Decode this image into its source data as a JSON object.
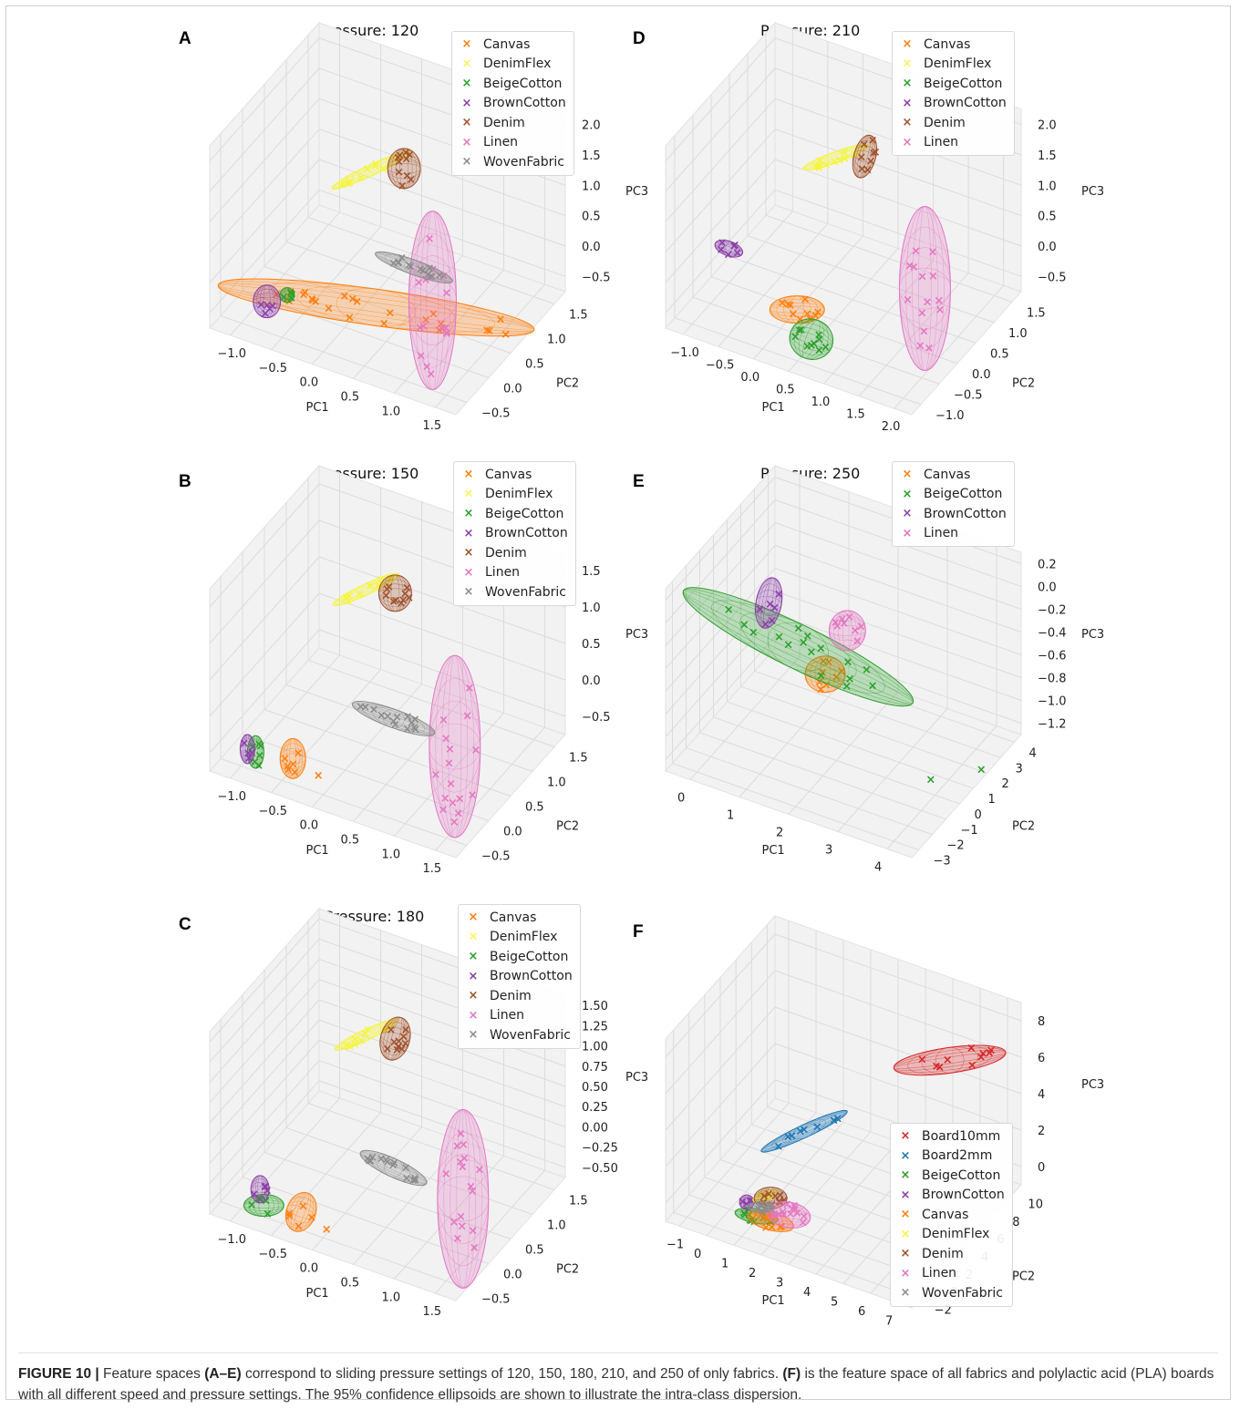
{
  "figure_caption": {
    "label": "FIGURE 10 |",
    "p1": " Feature spaces ",
    "b1": "(A–E)",
    "p2": " correspond to sliding pressure settings of 120, 150, 180, 210, and 250 of only fabrics. ",
    "b2": "(F)",
    "p3": " is the feature space of all fabrics and polylactic acid (PLA) boards with all different speed and pressure settings. The 95% confidence ellipsoids are shown to illustrate the intra-class dispersion."
  },
  "colors": {
    "Canvas": "#ff7f0e",
    "DenimFlex": "#f5f542",
    "BeigeCotton": "#2ca02c",
    "BrownCotton": "#8b3fa8",
    "Denim": "#a0522d",
    "Linen": "#e377c2",
    "WovenFabric": "#8c8c8c",
    "Board10mm": "#d62728",
    "Board2mm": "#1f77b4"
  },
  "chart_data": [
    {
      "panel": "A",
      "type": "scatter",
      "title": "Pressure: 120",
      "xlabel": "PC1",
      "ylabel": "PC2",
      "zlabel": "PC3",
      "xticks": [
        "−1.0",
        "−0.5",
        "0.0",
        "0.5",
        "1.0",
        "1.5"
      ],
      "yticks": [
        "−0.5",
        "0.0",
        "0.5",
        "1.0",
        "1.5"
      ],
      "zticks": [
        "−0.5",
        "0.0",
        "0.5",
        "1.0",
        "1.5",
        "2.0"
      ],
      "legend": [
        {
          "label": "Canvas",
          "marker": "×"
        },
        {
          "label": "DenimFlex",
          "marker": "✕"
        },
        {
          "label": "BeigeCotton",
          "marker": "×"
        },
        {
          "label": "BrownCotton",
          "marker": "×"
        },
        {
          "label": "Denim",
          "marker": "×"
        },
        {
          "label": "Linen",
          "marker": "×"
        },
        {
          "label": "WovenFabric",
          "marker": "×"
        }
      ],
      "series": [
        {
          "name": "Canvas",
          "center": [
            0.3,
            0.2,
            -0.3
          ],
          "radii": [
            175,
            20
          ],
          "tilt": 8,
          "n": 24,
          "outliers": [
            [
              1.7,
              0.6,
              -0.4
            ]
          ]
        },
        {
          "name": "DenimFlex",
          "center": [
            -0.2,
            1.0,
            0.9
          ],
          "radii": [
            48,
            6
          ],
          "tilt": -25,
          "n": 10
        },
        {
          "name": "BeigeCotton",
          "center": [
            -0.6,
            -0.2,
            -0.2
          ],
          "radii": [
            8,
            8
          ],
          "tilt": 0,
          "n": 4
        },
        {
          "name": "BrownCotton",
          "center": [
            -0.8,
            -0.3,
            -0.3
          ],
          "radii": [
            15,
            18
          ],
          "tilt": 0,
          "n": 5
        },
        {
          "name": "Denim",
          "center": [
            0.1,
            1.2,
            0.9
          ],
          "radii": [
            18,
            22
          ],
          "tilt": 0,
          "n": 10
        },
        {
          "name": "Linen",
          "center": [
            0.9,
            0.4,
            -0.1
          ],
          "radii": [
            26,
            98
          ],
          "tilt": 0,
          "n": 16
        },
        {
          "name": "WovenFabric",
          "center": [
            0.5,
            0.7,
            0.0
          ],
          "radii": [
            45,
            8
          ],
          "tilt": 20,
          "n": 12
        }
      ]
    },
    {
      "panel": "B",
      "type": "scatter",
      "title": "Pressure: 150",
      "xlabel": "PC1",
      "ylabel": "PC2",
      "zlabel": "PC3",
      "xticks": [
        "−1.0",
        "−0.5",
        "0.0",
        "0.5",
        "1.0",
        "1.5"
      ],
      "yticks": [
        "−0.5",
        "0.0",
        "0.5",
        "1.0",
        "1.5"
      ],
      "zticks": [
        "−0.5",
        "0.0",
        "0.5",
        "1.0",
        "1.5"
      ],
      "legend": [
        {
          "label": "Canvas",
          "marker": "×"
        },
        {
          "label": "DenimFlex",
          "marker": "✕"
        },
        {
          "label": "BeigeCotton",
          "marker": "×"
        },
        {
          "label": "BrownCotton",
          "marker": "×"
        },
        {
          "label": "Denim",
          "marker": "×"
        },
        {
          "label": "Linen",
          "marker": "×"
        },
        {
          "label": "WovenFabric",
          "marker": "×"
        }
      ],
      "series": [
        {
          "name": "Canvas",
          "center": [
            -0.5,
            -0.3,
            -0.5
          ],
          "radii": [
            14,
            22
          ],
          "tilt": 0,
          "n": 6,
          "outliers": [
            [
              -0.2,
              -0.3,
              -0.6
            ]
          ]
        },
        {
          "name": "DenimFlex",
          "center": [
            -0.3,
            1.0,
            0.9
          ],
          "radii": [
            40,
            6
          ],
          "tilt": -25,
          "n": 10
        },
        {
          "name": "BeigeCotton",
          "center": [
            -0.9,
            -0.4,
            -0.5
          ],
          "radii": [
            9,
            18
          ],
          "tilt": 0,
          "n": 6
        },
        {
          "name": "BrownCotton",
          "center": [
            -1.0,
            -0.4,
            -0.5
          ],
          "radii": [
            8,
            16
          ],
          "tilt": 0,
          "n": 4
        },
        {
          "name": "Denim",
          "center": [
            0.0,
            1.1,
            0.9
          ],
          "radii": [
            18,
            20
          ],
          "tilt": 0,
          "n": 10
        },
        {
          "name": "Linen",
          "center": [
            1.1,
            0.4,
            -0.2
          ],
          "radii": [
            28,
            100
          ],
          "tilt": 0,
          "n": 16
        },
        {
          "name": "WovenFabric",
          "center": [
            0.3,
            0.5,
            -0.2
          ],
          "radii": [
            48,
            10
          ],
          "tilt": 20,
          "n": 14
        }
      ]
    },
    {
      "panel": "C",
      "type": "scatter",
      "title": "Pressure: 180",
      "xlabel": "PC1",
      "ylabel": "PC2",
      "zlabel": "PC3",
      "xticks": [
        "−1.0",
        "−0.5",
        "0.0",
        "0.5",
        "1.0",
        "1.5"
      ],
      "yticks": [
        "−0.5",
        "0.0",
        "0.5",
        "1.0",
        "1.5"
      ],
      "zticks": [
        "−0.50",
        "−0.25",
        "0.00",
        "0.25",
        "0.50",
        "0.75",
        "1.00",
        "1.25",
        "1.50"
      ],
      "legend": [
        {
          "label": "Canvas",
          "marker": "×"
        },
        {
          "label": "DenimFlex",
          "marker": "✕"
        },
        {
          "label": "BeigeCotton",
          "marker": "×"
        },
        {
          "label": "BrownCotton",
          "marker": "×"
        },
        {
          "label": "Denim",
          "marker": "×"
        },
        {
          "label": "Linen",
          "marker": "×"
        },
        {
          "label": "WovenFabric",
          "marker": "×"
        }
      ],
      "series": [
        {
          "name": "Canvas",
          "center": [
            -0.4,
            -0.3,
            -0.5
          ],
          "radii": [
            16,
            22
          ],
          "tilt": 20,
          "n": 5,
          "outliers": [
            [
              -0.1,
              -0.3,
              -0.6
            ]
          ]
        },
        {
          "name": "DenimFlex",
          "center": [
            -0.3,
            1.0,
            0.9
          ],
          "radii": [
            38,
            6
          ],
          "tilt": -25,
          "n": 10
        },
        {
          "name": "BeigeCotton",
          "center": [
            -0.8,
            -0.4,
            -0.5
          ],
          "radii": [
            22,
            12
          ],
          "tilt": 0,
          "n": 6
        },
        {
          "name": "BrownCotton",
          "center": [
            -0.9,
            -0.3,
            -0.4
          ],
          "radii": [
            10,
            15
          ],
          "tilt": 0,
          "n": 4
        },
        {
          "name": "Denim",
          "center": [
            0.0,
            1.1,
            0.9
          ],
          "radii": [
            16,
            24
          ],
          "tilt": 15,
          "n": 10
        },
        {
          "name": "Linen",
          "center": [
            1.2,
            0.4,
            -0.2
          ],
          "radii": [
            28,
            98
          ],
          "tilt": 0,
          "n": 16
        },
        {
          "name": "WovenFabric",
          "center": [
            0.3,
            0.5,
            -0.2
          ],
          "radii": [
            40,
            10
          ],
          "tilt": 25,
          "n": 14
        }
      ]
    },
    {
      "panel": "D",
      "type": "scatter",
      "title": "Pressure: 210",
      "xlabel": "PC1",
      "ylabel": "PC2",
      "zlabel": "PC3",
      "xticks": [
        "−1.0",
        "−0.5",
        "0.0",
        "0.5",
        "1.0",
        "1.5",
        "2.0"
      ],
      "yticks": [
        "−1.0",
        "−0.5",
        "0.0",
        "0.5",
        "1.0",
        "1.5"
      ],
      "zticks": [
        "−0.5",
        "0.0",
        "0.5",
        "1.0",
        "1.5",
        "2.0"
      ],
      "legend": [
        {
          "label": "Canvas",
          "marker": "×"
        },
        {
          "label": "DenimFlex",
          "marker": "✕"
        },
        {
          "label": "BeigeCotton",
          "marker": "×"
        },
        {
          "label": "BrownCotton",
          "marker": "×"
        },
        {
          "label": "Denim",
          "marker": "×"
        },
        {
          "label": "Linen",
          "marker": "×"
        }
      ],
      "series": [
        {
          "name": "Canvas",
          "center": [
            0.2,
            -0.4,
            -0.3
          ],
          "radii": [
            30,
            15
          ],
          "tilt": 0,
          "n": 10
        },
        {
          "name": "DenimFlex",
          "center": [
            0.0,
            1.0,
            1.0
          ],
          "radii": [
            38,
            6
          ],
          "tilt": -20,
          "n": 10
        },
        {
          "name": "BeigeCotton",
          "center": [
            0.5,
            -0.6,
            -0.5
          ],
          "radii": [
            24,
            22
          ],
          "tilt": 20,
          "n": 10
        },
        {
          "name": "BrownCotton",
          "center": [
            -0.9,
            -0.1,
            0.0
          ],
          "radii": [
            16,
            8
          ],
          "tilt": 20,
          "n": 6
        },
        {
          "name": "Denim",
          "center": [
            0.3,
            1.2,
            1.0
          ],
          "radii": [
            12,
            24
          ],
          "tilt": 15,
          "n": 8
        },
        {
          "name": "Linen",
          "center": [
            1.6,
            0.3,
            0.1
          ],
          "radii": [
            28,
            90
          ],
          "tilt": 0,
          "n": 14
        }
      ]
    },
    {
      "panel": "E",
      "type": "scatter",
      "title": "Pressure: 250",
      "xlabel": "PC1",
      "ylabel": "PC2",
      "zlabel": "PC3",
      "xticks": [
        "0",
        "1",
        "2",
        "3",
        "4"
      ],
      "yticks": [
        "−3",
        "−2",
        "−1",
        "0",
        "1",
        "2",
        "3",
        "4"
      ],
      "zticks": [
        "−1.2",
        "−1.0",
        "−0.8",
        "−0.6",
        "−0.4",
        "−0.2",
        "0.0",
        "0.2"
      ],
      "legend": [
        {
          "label": "Canvas",
          "marker": "×"
        },
        {
          "label": "BeigeCotton",
          "marker": "×"
        },
        {
          "label": "BrownCotton",
          "marker": "×"
        },
        {
          "label": "Linen",
          "marker": "×"
        }
      ],
      "series": [
        {
          "name": "Canvas",
          "center": [
            1.8,
            0.2,
            -0.6
          ],
          "radii": [
            22,
            20
          ],
          "tilt": 0,
          "n": 8
        },
        {
          "name": "BeigeCotton",
          "center": [
            1.2,
            0.5,
            -0.5
          ],
          "radii": [
            140,
            24
          ],
          "tilt": 26,
          "n": 16,
          "outliers": [
            [
              3.8,
              0.2,
              -1.2
            ],
            [
              4.4,
              1.5,
              -1.2
            ]
          ]
        },
        {
          "name": "BrownCotton",
          "center": [
            0.5,
            1.0,
            -0.3
          ],
          "radii": [
            14,
            28
          ],
          "tilt": 10,
          "n": 6
        },
        {
          "name": "Linen",
          "center": [
            2.0,
            1.0,
            -0.3
          ],
          "radii": [
            20,
            22
          ],
          "tilt": 0,
          "n": 8
        }
      ]
    },
    {
      "panel": "F",
      "type": "scatter",
      "title": "",
      "xlabel": "PC1",
      "ylabel": "PC2",
      "zlabel": "PC3",
      "xticks": [
        "−1",
        "0",
        "1",
        "2",
        "3",
        "4",
        "5",
        "6",
        "7"
      ],
      "yticks": [
        "−2",
        "0",
        "2",
        "4",
        "6",
        "8",
        "10"
      ],
      "zticks": [
        "0",
        "2",
        "4",
        "6",
        "8"
      ],
      "legend": [
        {
          "label": "Board10mm",
          "marker": "×"
        },
        {
          "label": "Board2mm",
          "marker": "×"
        },
        {
          "label": "BeigeCotton",
          "marker": "×"
        },
        {
          "label": "BrownCotton",
          "marker": "×"
        },
        {
          "label": "Canvas",
          "marker": "×"
        },
        {
          "label": "DenimFlex",
          "marker": "×"
        },
        {
          "label": "Denim",
          "marker": "×"
        },
        {
          "label": "Linen",
          "marker": "×"
        },
        {
          "label": "WovenFabric",
          "marker": "×"
        }
      ],
      "series": [
        {
          "name": "Board10mm",
          "center": [
            5.5,
            8.0,
            6.0
          ],
          "radii": [
            62,
            14
          ],
          "tilt": -8,
          "n": 10
        },
        {
          "name": "Board2mm",
          "center": [
            1.5,
            4.0,
            2.5
          ],
          "radii": [
            52,
            7
          ],
          "tilt": -25,
          "n": 8
        },
        {
          "name": "BeigeCotton",
          "center": [
            1.0,
            0.0,
            0.0
          ],
          "radii": [
            24,
            8
          ],
          "tilt": 10,
          "n": 12
        },
        {
          "name": "BrownCotton",
          "center": [
            0.5,
            0.5,
            0.2
          ],
          "radii": [
            8,
            8
          ],
          "tilt": 0,
          "n": 4
        },
        {
          "name": "Canvas",
          "center": [
            1.5,
            0.0,
            0.0
          ],
          "radii": [
            26,
            10
          ],
          "tilt": 15,
          "n": 14
        },
        {
          "name": "DenimFlex",
          "center": [
            1.0,
            1.0,
            0.5
          ],
          "radii": [
            14,
            5
          ],
          "tilt": -20,
          "n": 4
        },
        {
          "name": "Denim",
          "center": [
            1.2,
            1.0,
            0.5
          ],
          "radii": [
            18,
            12
          ],
          "tilt": 0,
          "n": 10
        },
        {
          "name": "Linen",
          "center": [
            2.0,
            0.5,
            0.3
          ],
          "radii": [
            24,
            14
          ],
          "tilt": 10,
          "n": 14
        },
        {
          "name": "WovenFabric",
          "center": [
            1.0,
            0.5,
            0.2
          ],
          "radii": [
            14,
            6
          ],
          "tilt": 0,
          "n": 6
        }
      ]
    }
  ]
}
